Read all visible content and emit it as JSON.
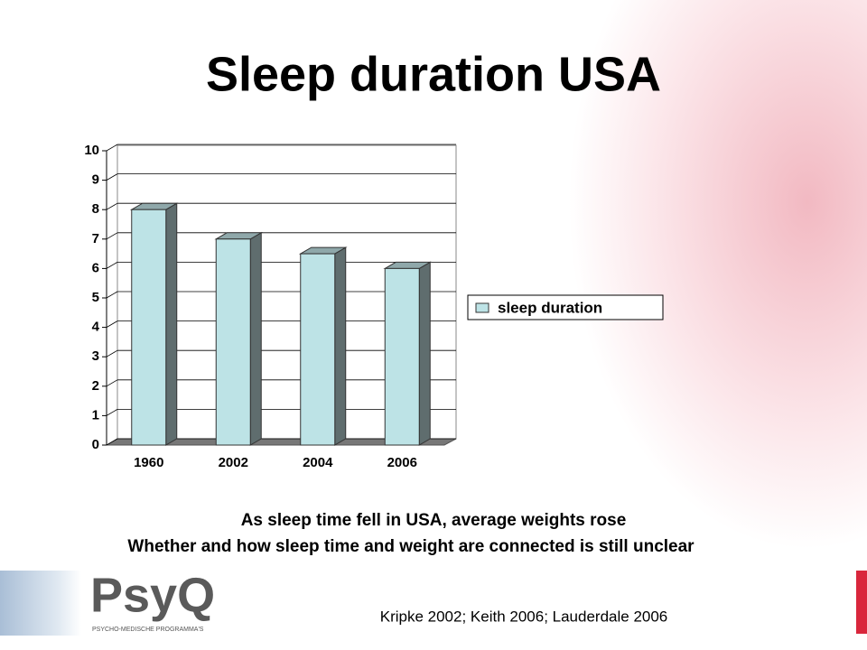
{
  "chart_data": {
    "type": "bar",
    "title": "Sleep duration USA",
    "categories": [
      "1960",
      "2002",
      "2004",
      "2006"
    ],
    "series": [
      {
        "name": "sleep duration",
        "color": "#bde3e6",
        "values": [
          8,
          7,
          6.5,
          6
        ]
      }
    ],
    "ylim": [
      0,
      10
    ],
    "yticks": [
      0,
      1,
      2,
      3,
      4,
      5,
      6,
      7,
      8,
      9,
      10
    ],
    "grid": true,
    "legend": "right"
  },
  "captions": [
    "As sleep time fell in USA, average weights rose",
    "Whether and how sleep time and weight are connected is still unclear"
  ],
  "citation": "Kripke 2002; Keith 2006; Lauderdale 2006",
  "logo": {
    "name": "PsyQ",
    "tagline": "PSYCHO-MEDISCHE PROGRAMMA'S"
  }
}
